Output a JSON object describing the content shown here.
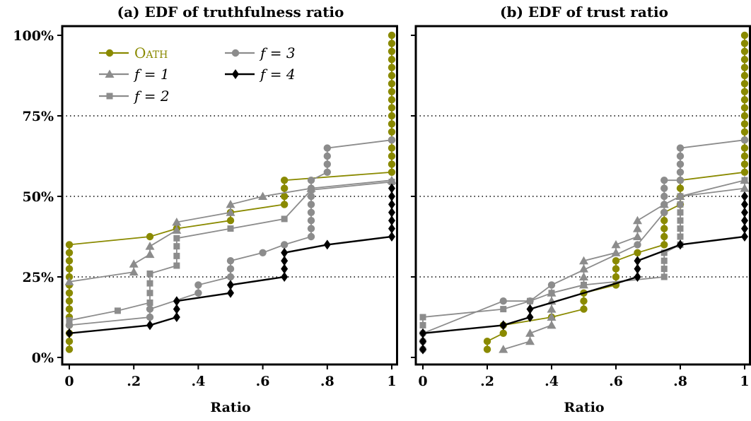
{
  "figure": {
    "panel_a_title": "(a) EDF of truthfulness ratio",
    "panel_b_title": "(b) EDF of trust ratio",
    "xlabel": "Ratio",
    "y_ticks": [
      "0%",
      "25%",
      "50%",
      "75%",
      "100%"
    ],
    "x_ticks": [
      "0",
      ".2",
      ".4",
      ".6",
      ".8",
      "1"
    ],
    "legend": {
      "oath": "Oath",
      "f1": "f = 1",
      "f2": "f = 2",
      "f3": "f = 3",
      "f4": "f = 4"
    }
  },
  "colors": {
    "oath": "#8a8a00",
    "f1": "#8c8c8c",
    "f2": "#8c8c8c",
    "f3": "#8c8c8c",
    "f4": "#000000",
    "grid": "#000000"
  },
  "chart_data": [
    {
      "type": "line",
      "title": "(a) EDF of truthfulness ratio",
      "xlabel": "Ratio",
      "ylabel": "",
      "xlim": [
        0,
        1
      ],
      "ylim": [
        0,
        1
      ],
      "grid": "horizontal dotted at 25%, 50%, 75%",
      "legend_position": "top-left",
      "series": [
        {
          "key": "oath",
          "name": "Oath",
          "marker": "circle",
          "points": [
            [
              0,
              0.025
            ],
            [
              0,
              0.05
            ],
            [
              0,
              0.075
            ],
            [
              0,
              0.1
            ],
            [
              0,
              0.125
            ],
            [
              0,
              0.15
            ],
            [
              0,
              0.175
            ],
            [
              0,
              0.2
            ],
            [
              0,
              0.225
            ],
            [
              0,
              0.25
            ],
            [
              0,
              0.275
            ],
            [
              0,
              0.3
            ],
            [
              0,
              0.325
            ],
            [
              0,
              0.35
            ],
            [
              0.25,
              0.375
            ],
            [
              0.333,
              0.4
            ],
            [
              0.5,
              0.425
            ],
            [
              0.5,
              0.45
            ],
            [
              0.667,
              0.475
            ],
            [
              0.667,
              0.5
            ],
            [
              0.667,
              0.525
            ],
            [
              0.667,
              0.55
            ],
            [
              1,
              0.575
            ],
            [
              1,
              0.6
            ],
            [
              1,
              0.625
            ],
            [
              1,
              0.65
            ],
            [
              1,
              0.675
            ],
            [
              1,
              0.7
            ],
            [
              1,
              0.725
            ],
            [
              1,
              0.75
            ],
            [
              1,
              0.775
            ],
            [
              1,
              0.8
            ],
            [
              1,
              0.825
            ],
            [
              1,
              0.85
            ],
            [
              1,
              0.875
            ],
            [
              1,
              0.9
            ],
            [
              1,
              0.925
            ],
            [
              1,
              0.95
            ],
            [
              1,
              0.975
            ],
            [
              1,
              1.0
            ]
          ]
        },
        {
          "key": "f1",
          "name": "f = 1",
          "marker": "triangle",
          "points": [
            [
              0,
              0.235
            ],
            [
              0.2,
              0.265
            ],
            [
              0.2,
              0.29
            ],
            [
              0.25,
              0.32
            ],
            [
              0.25,
              0.345
            ],
            [
              0.333,
              0.395
            ],
            [
              0.333,
              0.42
            ],
            [
              0.5,
              0.45
            ],
            [
              0.5,
              0.475
            ],
            [
              0.6,
              0.5
            ],
            [
              0.75,
              0.525
            ],
            [
              1,
              0.55
            ]
          ]
        },
        {
          "key": "f2",
          "name": "f = 2",
          "marker": "square",
          "points": [
            [
              0,
              0.115
            ],
            [
              0.15,
              0.145
            ],
            [
              0.25,
              0.17
            ],
            [
              0.25,
              0.2
            ],
            [
              0.25,
              0.23
            ],
            [
              0.25,
              0.26
            ],
            [
              0.333,
              0.285
            ],
            [
              0.333,
              0.315
            ],
            [
              0.333,
              0.345
            ],
            [
              0.333,
              0.37
            ],
            [
              0.5,
              0.4
            ],
            [
              0.667,
              0.43
            ],
            [
              0.75,
              0.52
            ],
            [
              1,
              0.545
            ]
          ]
        },
        {
          "key": "f3",
          "name": "f = 3",
          "marker": "circle",
          "points": [
            [
              0,
              0.1
            ],
            [
              0.25,
              0.125
            ],
            [
              0.25,
              0.15
            ],
            [
              0.4,
              0.2
            ],
            [
              0.4,
              0.225
            ],
            [
              0.5,
              0.25
            ],
            [
              0.5,
              0.275
            ],
            [
              0.5,
              0.3
            ],
            [
              0.6,
              0.325
            ],
            [
              0.667,
              0.35
            ],
            [
              0.75,
              0.375
            ],
            [
              0.75,
              0.4
            ],
            [
              0.75,
              0.425
            ],
            [
              0.75,
              0.45
            ],
            [
              0.75,
              0.475
            ],
            [
              0.75,
              0.5
            ],
            [
              0.75,
              0.525
            ],
            [
              0.75,
              0.55
            ],
            [
              0.8,
              0.575
            ],
            [
              0.8,
              0.6
            ],
            [
              0.8,
              0.625
            ],
            [
              0.8,
              0.65
            ],
            [
              1,
              0.675
            ]
          ]
        },
        {
          "key": "f4",
          "name": "f = 4",
          "marker": "diamond",
          "points": [
            [
              0,
              0.075
            ],
            [
              0.25,
              0.1
            ],
            [
              0.333,
              0.125
            ],
            [
              0.333,
              0.15
            ],
            [
              0.333,
              0.175
            ],
            [
              0.5,
              0.2
            ],
            [
              0.5,
              0.225
            ],
            [
              0.667,
              0.25
            ],
            [
              0.667,
              0.275
            ],
            [
              0.667,
              0.3
            ],
            [
              0.667,
              0.325
            ],
            [
              0.8,
              0.35
            ],
            [
              1,
              0.375
            ],
            [
              1,
              0.4
            ],
            [
              1,
              0.425
            ],
            [
              1,
              0.45
            ],
            [
              1,
              0.475
            ],
            [
              1,
              0.5
            ],
            [
              1,
              0.525
            ]
          ]
        }
      ]
    },
    {
      "type": "line",
      "title": "(b) EDF of trust ratio",
      "xlabel": "Ratio",
      "ylabel": "",
      "xlim": [
        0,
        1
      ],
      "ylim": [
        0,
        1
      ],
      "grid": "horizontal dotted at 25%, 50%, 75%",
      "series": [
        {
          "key": "oath",
          "name": "Oath",
          "marker": "circle",
          "points": [
            [
              0.2,
              0.025
            ],
            [
              0.2,
              0.05
            ],
            [
              0.25,
              0.075
            ],
            [
              0.25,
              0.1
            ],
            [
              0.4,
              0.125
            ],
            [
              0.5,
              0.15
            ],
            [
              0.5,
              0.175
            ],
            [
              0.5,
              0.2
            ],
            [
              0.6,
              0.225
            ],
            [
              0.6,
              0.25
            ],
            [
              0.6,
              0.275
            ],
            [
              0.6,
              0.3
            ],
            [
              0.667,
              0.325
            ],
            [
              0.75,
              0.35
            ],
            [
              0.75,
              0.375
            ],
            [
              0.75,
              0.4
            ],
            [
              0.75,
              0.425
            ],
            [
              0.75,
              0.45
            ],
            [
              0.8,
              0.475
            ],
            [
              0.8,
              0.5
            ],
            [
              0.8,
              0.525
            ],
            [
              0.8,
              0.55
            ],
            [
              1,
              0.575
            ],
            [
              1,
              0.6
            ],
            [
              1,
              0.625
            ],
            [
              1,
              0.65
            ],
            [
              1,
              0.675
            ],
            [
              1,
              0.7
            ],
            [
              1,
              0.725
            ],
            [
              1,
              0.75
            ],
            [
              1,
              0.775
            ],
            [
              1,
              0.8
            ],
            [
              1,
              0.825
            ],
            [
              1,
              0.85
            ],
            [
              1,
              0.875
            ],
            [
              1,
              0.9
            ],
            [
              1,
              0.925
            ],
            [
              1,
              0.95
            ],
            [
              1,
              0.975
            ],
            [
              1,
              1.0
            ]
          ]
        },
        {
          "key": "f1",
          "name": "f = 1",
          "marker": "triangle",
          "points": [
            [
              0.25,
              0.025
            ],
            [
              0.333,
              0.05
            ],
            [
              0.333,
              0.075
            ],
            [
              0.4,
              0.1
            ],
            [
              0.4,
              0.125
            ],
            [
              0.4,
              0.15
            ],
            [
              0.4,
              0.175
            ],
            [
              0.4,
              0.2
            ],
            [
              0.5,
              0.225
            ],
            [
              0.5,
              0.25
            ],
            [
              0.5,
              0.275
            ],
            [
              0.5,
              0.3
            ],
            [
              0.6,
              0.325
            ],
            [
              0.6,
              0.35
            ],
            [
              0.667,
              0.375
            ],
            [
              0.667,
              0.4
            ],
            [
              0.667,
              0.425
            ],
            [
              0.75,
              0.475
            ],
            [
              0.8,
              0.5
            ],
            [
              1,
              0.525
            ],
            [
              1,
              0.55
            ]
          ]
        },
        {
          "key": "f2",
          "name": "f = 2",
          "marker": "square",
          "points": [
            [
              0,
              0.1
            ],
            [
              0,
              0.125
            ],
            [
              0.25,
              0.15
            ],
            [
              0.333,
              0.175
            ],
            [
              0.4,
              0.2
            ],
            [
              0.5,
              0.225
            ],
            [
              0.75,
              0.25
            ],
            [
              0.75,
              0.275
            ],
            [
              0.75,
              0.3
            ],
            [
              0.75,
              0.325
            ],
            [
              0.8,
              0.35
            ],
            [
              0.8,
              0.375
            ],
            [
              0.8,
              0.4
            ],
            [
              0.8,
              0.425
            ],
            [
              0.8,
              0.45
            ],
            [
              0.8,
              0.475
            ],
            [
              0.8,
              0.5
            ],
            [
              1,
              0.55
            ]
          ]
        },
        {
          "key": "f3",
          "name": "f = 3",
          "marker": "circle",
          "points": [
            [
              0,
              0.025
            ],
            [
              0,
              0.05
            ],
            [
              0,
              0.075
            ],
            [
              0.25,
              0.175
            ],
            [
              0.333,
              0.175
            ],
            [
              0.4,
              0.225
            ],
            [
              0.667,
              0.35
            ],
            [
              0.75,
              0.45
            ],
            [
              0.75,
              0.475
            ],
            [
              0.75,
              0.5
            ],
            [
              0.75,
              0.525
            ],
            [
              0.75,
              0.55
            ],
            [
              0.8,
              0.55
            ],
            [
              0.8,
              0.575
            ],
            [
              0.8,
              0.6
            ],
            [
              0.8,
              0.625
            ],
            [
              0.8,
              0.65
            ],
            [
              1,
              0.675
            ]
          ]
        },
        {
          "key": "f4",
          "name": "f = 4",
          "marker": "diamond",
          "points": [
            [
              0,
              0.025
            ],
            [
              0,
              0.05
            ],
            [
              0,
              0.075
            ],
            [
              0.25,
              0.1
            ],
            [
              0.333,
              0.125
            ],
            [
              0.333,
              0.15
            ],
            [
              0.667,
              0.25
            ],
            [
              0.667,
              0.275
            ],
            [
              0.667,
              0.3
            ],
            [
              0.8,
              0.35
            ],
            [
              1,
              0.375
            ],
            [
              1,
              0.4
            ],
            [
              1,
              0.425
            ],
            [
              1,
              0.45
            ],
            [
              1,
              0.475
            ],
            [
              1,
              0.5
            ]
          ]
        }
      ]
    }
  ]
}
